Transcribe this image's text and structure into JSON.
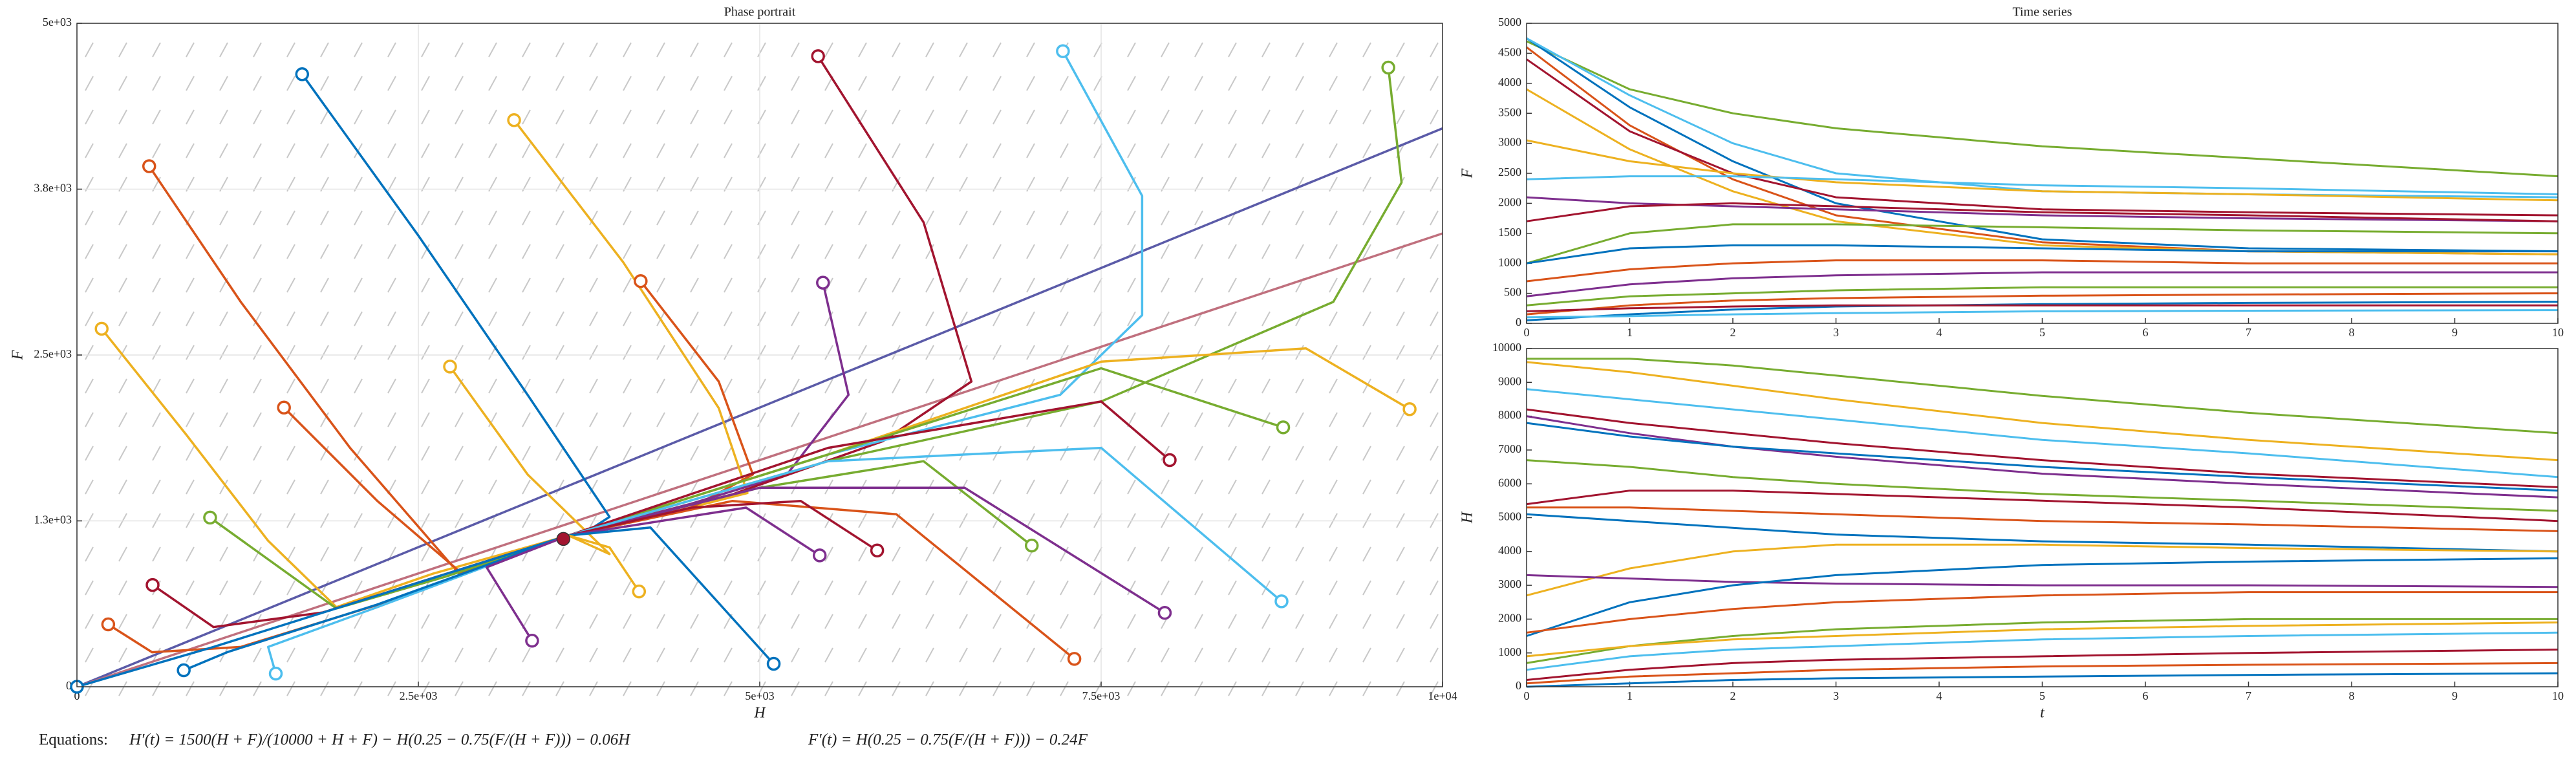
{
  "chart_data": [
    {
      "type": "line",
      "title": "Phase portrait",
      "xlabel": "H",
      "ylabel": "F",
      "grid": true,
      "field": true,
      "xlim": [
        0,
        10000
      ],
      "ylim": [
        0,
        5000
      ],
      "xticks": [
        0,
        {
          "value": 2500,
          "label": "2.5e+03"
        },
        {
          "value": 5000,
          "label": "5e+03"
        },
        {
          "value": 7500,
          "label": "7.5e+03"
        },
        {
          "value": 10000,
          "label": "1e+04"
        }
      ],
      "yticks": [
        0,
        {
          "value": 1250,
          "label": "1.3e+03"
        },
        {
          "value": 2500,
          "label": "2.5e+03"
        },
        {
          "value": 3750,
          "label": "3.8e+03"
        },
        {
          "value": 5000,
          "label": "5e+03"
        }
      ],
      "equilibrium": {
        "x": 3562,
        "y": 1114,
        "color": "#a2142f"
      },
      "series": [
        {
          "color": "#5b5ba8",
          "x": [
            0,
            10000
          ],
          "values": [
            0,
            4208
          ]
        },
        {
          "color": "#c0707e",
          "x": [
            0,
            10000
          ],
          "values": [
            0,
            3416
          ]
        },
        {
          "color": "#0072bd",
          "start_marker": true,
          "x": [
            1649,
            2500,
            3300,
            3900,
            3750,
            3600
          ],
          "values": [
            4616,
            3400,
            2200,
            1280,
            1180,
            1140
          ]
        },
        {
          "color": "#d95319",
          "start_marker": true,
          "x": [
            529,
            1200,
            2000,
            2800,
            3300,
            3600
          ],
          "values": [
            3923,
            2900,
            1800,
            850,
            1050,
            1140
          ]
        },
        {
          "color": "#edb120",
          "start_marker": true,
          "x": [
            181,
            800,
            1400,
            1900,
            2600,
            3600
          ],
          "values": [
            2698,
            1900,
            1100,
            600,
            850,
            1140
          ]
        },
        {
          "color": "#d95319",
          "start_marker": true,
          "x": [
            1516,
            2200,
            2800,
            3600
          ],
          "values": [
            2104,
            1400,
            870,
            1140
          ]
        },
        {
          "color": "#77ac30",
          "start_marker": true,
          "x": [
            975,
            1900,
            2700,
            3600
          ],
          "values": [
            1275,
            590,
            830,
            1140
          ]
        },
        {
          "color": "#a2142f",
          "start_marker": true,
          "x": [
            554,
            1000,
            1800,
            3600
          ],
          "values": [
            767,
            450,
            560,
            1140
          ]
        },
        {
          "color": "#d95319",
          "start_marker": true,
          "x": [
            229,
            550,
            1200,
            2400,
            3600
          ],
          "values": [
            470,
            260,
            300,
            680,
            1140
          ]
        },
        {
          "color": "#4dbeee",
          "start_marker": true,
          "x": [
            1456,
            1400,
            2200,
            3600
          ],
          "values": [
            99,
            300,
            600,
            1140
          ]
        },
        {
          "color": "#0072bd",
          "start_marker": true,
          "x": [
            782,
            1100,
            2200,
            3600
          ],
          "values": [
            124,
            260,
            620,
            1140
          ]
        },
        {
          "color": "#0072bd",
          "start_marker": true,
          "x": [
            0,
            1000,
            3600
          ],
          "values": [
            0,
            300,
            1140
          ]
        },
        {
          "color": "#edb120",
          "start_marker": true,
          "x": [
            3201,
            4000,
            4700,
            4910,
            4300,
            3600
          ],
          "values": [
            4270,
            3200,
            2100,
            1460,
            1300,
            1140
          ]
        },
        {
          "color": "#d95319",
          "start_marker": true,
          "x": [
            4128,
            4700,
            4950,
            4500,
            3600
          ],
          "values": [
            3057,
            2300,
            1600,
            1350,
            1140
          ]
        },
        {
          "color": "#edb120",
          "start_marker": true,
          "x": [
            2732,
            3300,
            3900,
            3600
          ],
          "values": [
            2413,
            1600,
            1000,
            1140
          ]
        },
        {
          "color": "#7e2f8e",
          "start_marker": true,
          "x": [
            5463,
            5650,
            5200,
            4500,
            3600
          ],
          "values": [
            3045,
            2200,
            1600,
            1380,
            1140
          ]
        },
        {
          "color": "#a2142f",
          "start_marker": true,
          "x": [
            5427,
            6200,
            6550,
            5900,
            4800,
            3600
          ],
          "values": [
            4752,
            3500,
            2300,
            1850,
            1450,
            1140
          ]
        },
        {
          "color": "#4dbeee",
          "start_marker": true,
          "x": [
            7220,
            7800,
            7800,
            7200,
            5500,
            3600
          ],
          "values": [
            4790,
            3700,
            2800,
            2200,
            1750,
            1140
          ]
        },
        {
          "color": "#77ac30",
          "start_marker": true,
          "x": [
            9603,
            9700,
            9200,
            7500,
            5500,
            3600
          ],
          "values": [
            4666,
            3800,
            2900,
            2150,
            1700,
            1140
          ]
        },
        {
          "color": "#edb120",
          "start_marker": true,
          "x": [
            9759,
            9000,
            7500,
            5500,
            3600
          ],
          "values": [
            2092,
            2550,
            2450,
            1750,
            1140
          ]
        },
        {
          "color": "#77ac30",
          "start_marker": true,
          "x": [
            8833,
            7500,
            5500,
            3600
          ],
          "values": [
            1955,
            2400,
            1750,
            1140
          ]
        },
        {
          "color": "#a2142f",
          "start_marker": true,
          "x": [
            8002,
            7500,
            5500,
            3600
          ],
          "values": [
            1708,
            2150,
            1800,
            1140
          ]
        },
        {
          "color": "#77ac30",
          "start_marker": true,
          "x": [
            6992,
            6200,
            5000,
            3600
          ],
          "values": [
            1064,
            1700,
            1500,
            1140
          ]
        },
        {
          "color": "#7e2f8e",
          "start_marker": true,
          "x": [
            7966,
            6500,
            5000,
            3600
          ],
          "values": [
            557,
            1500,
            1500,
            1140
          ]
        },
        {
          "color": "#d95319",
          "start_marker": true,
          "x": [
            7304,
            6000,
            4800,
            3600
          ],
          "values": [
            210,
            1300,
            1400,
            1140
          ]
        },
        {
          "color": "#4dbeee",
          "start_marker": true,
          "x": [
            8821,
            7500,
            5500,
            3600
          ],
          "values": [
            644,
            1800,
            1700,
            1140
          ]
        },
        {
          "color": "#a2142f",
          "start_marker": true,
          "x": [
            5860,
            5300,
            4500,
            3600
          ],
          "values": [
            1027,
            1400,
            1350,
            1140
          ]
        },
        {
          "color": "#7e2f8e",
          "start_marker": true,
          "x": [
            5439,
            4900,
            3600
          ],
          "values": [
            990,
            1350,
            1140
          ]
        },
        {
          "color": "#7e2f8e",
          "start_marker": true,
          "x": [
            3333,
            3000,
            3600
          ],
          "values": [
            347,
            900,
            1140
          ]
        },
        {
          "color": "#0072bd",
          "start_marker": true,
          "x": [
            5102,
            4200,
            3600
          ],
          "values": [
            173,
            1200,
            1140
          ]
        },
        {
          "color": "#edb120",
          "start_marker": true,
          "x": [
            4116,
            3900,
            3600
          ],
          "values": [
            718,
            1050,
            1140
          ]
        }
      ]
    },
    {
      "type": "line",
      "title": "Time series",
      "ylabel": "F",
      "grid": false,
      "xlim": [
        0,
        10
      ],
      "ylim": [
        0,
        5000
      ],
      "xticks": [
        0,
        1,
        2,
        3,
        4,
        5,
        6,
        7,
        8,
        9,
        10
      ],
      "yticks": [
        0,
        500,
        1000,
        1500,
        2000,
        2500,
        3000,
        3500,
        4000,
        4500,
        5000
      ],
      "x": [
        0,
        1,
        2,
        3,
        5,
        7,
        10
      ],
      "series": [
        {
          "color": "#77ac30",
          "values": [
            4700,
            3900,
            3500,
            3250,
            2950,
            2750,
            2450
          ]
        },
        {
          "color": "#0072bd",
          "values": [
            4750,
            3600,
            2700,
            2000,
            1400,
            1250,
            1200
          ]
        },
        {
          "color": "#d95319",
          "values": [
            4600,
            3300,
            2400,
            1800,
            1350,
            1200,
            1150
          ]
        },
        {
          "color": "#a2142f",
          "values": [
            4400,
            3200,
            2500,
            2100,
            1900,
            1850,
            1800
          ]
        },
        {
          "color": "#edb120",
          "values": [
            3900,
            2900,
            2200,
            1700,
            1300,
            1200,
            1150
          ]
        },
        {
          "color": "#4dbeee",
          "values": [
            4750,
            3800,
            3000,
            2500,
            2200,
            2150,
            2100
          ]
        },
        {
          "color": "#edb120",
          "values": [
            3050,
            2700,
            2500,
            2350,
            2200,
            2150,
            2050
          ]
        },
        {
          "color": "#7e2f8e",
          "values": [
            2100,
            2000,
            1950,
            1900,
            1800,
            1750,
            1700
          ]
        },
        {
          "color": "#4dbeee",
          "values": [
            2400,
            2450,
            2450,
            2400,
            2300,
            2250,
            2150
          ]
        },
        {
          "color": "#a2142f",
          "values": [
            1700,
            1950,
            2000,
            1950,
            1850,
            1800,
            1700
          ]
        },
        {
          "color": "#77ac30",
          "values": [
            1000,
            1500,
            1650,
            1650,
            1600,
            1550,
            1500
          ]
        },
        {
          "color": "#0072bd",
          "values": [
            1000,
            1250,
            1300,
            1300,
            1250,
            1200,
            1200
          ]
        },
        {
          "color": "#d95319",
          "values": [
            700,
            900,
            1000,
            1050,
            1050,
            1000,
            1000
          ]
        },
        {
          "color": "#7e2f8e",
          "values": [
            450,
            650,
            750,
            800,
            850,
            850,
            850
          ]
        },
        {
          "color": "#77ac30",
          "values": [
            300,
            450,
            500,
            550,
            600,
            600,
            600
          ]
        },
        {
          "color": "#d95319",
          "values": [
            150,
            300,
            380,
            420,
            460,
            480,
            500
          ]
        },
        {
          "color": "#0072bd",
          "values": [
            50,
            150,
            230,
            280,
            320,
            340,
            360
          ]
        },
        {
          "color": "#a2142f",
          "values": [
            200,
            250,
            280,
            300,
            300,
            300,
            300
          ]
        },
        {
          "color": "#4dbeee",
          "values": [
            100,
            120,
            150,
            170,
            200,
            210,
            220
          ]
        }
      ]
    },
    {
      "type": "line",
      "xlabel": "t",
      "ylabel": "H",
      "grid": false,
      "xlim": [
        0,
        10
      ],
      "ylim": [
        0,
        10000
      ],
      "xticks": [
        0,
        1,
        2,
        3,
        4,
        5,
        6,
        7,
        8,
        9,
        10
      ],
      "yticks": [
        0,
        1000,
        2000,
        3000,
        4000,
        5000,
        6000,
        7000,
        8000,
        9000,
        10000
      ],
      "x": [
        0,
        1,
        2,
        3,
        5,
        7,
        10
      ],
      "series": [
        {
          "color": "#77ac30",
          "values": [
            9700,
            9700,
            9500,
            9200,
            8600,
            8100,
            7500
          ]
        },
        {
          "color": "#edb120",
          "values": [
            9600,
            9300,
            8900,
            8500,
            7800,
            7300,
            6700
          ]
        },
        {
          "color": "#4dbeee",
          "values": [
            8800,
            8500,
            8200,
            7900,
            7300,
            6900,
            6200
          ]
        },
        {
          "color": "#a2142f",
          "values": [
            8200,
            7800,
            7500,
            7200,
            6700,
            6300,
            5900
          ]
        },
        {
          "color": "#7e2f8e",
          "values": [
            8000,
            7500,
            7100,
            6800,
            6300,
            6000,
            5600
          ]
        },
        {
          "color": "#0072bd",
          "values": [
            7800,
            7400,
            7100,
            6900,
            6500,
            6200,
            5800
          ]
        },
        {
          "color": "#77ac30",
          "values": [
            6700,
            6500,
            6200,
            6000,
            5700,
            5500,
            5200
          ]
        },
        {
          "color": "#a2142f",
          "values": [
            5400,
            5800,
            5800,
            5700,
            5500,
            5300,
            4900
          ]
        },
        {
          "color": "#d95319",
          "values": [
            5300,
            5300,
            5200,
            5100,
            4900,
            4800,
            4600
          ]
        },
        {
          "color": "#0072bd",
          "values": [
            5100,
            4900,
            4700,
            4500,
            4300,
            4200,
            4000
          ]
        },
        {
          "color": "#edb120",
          "values": [
            2700,
            3500,
            4000,
            4200,
            4200,
            4100,
            4000
          ]
        },
        {
          "color": "#7e2f8e",
          "values": [
            3300,
            3200,
            3100,
            3050,
            3000,
            3000,
            2950
          ]
        },
        {
          "color": "#0072bd",
          "values": [
            1500,
            2500,
            3000,
            3300,
            3600,
            3700,
            3800
          ]
        },
        {
          "color": "#d95319",
          "values": [
            1600,
            2000,
            2300,
            2500,
            2700,
            2800,
            2800
          ]
        },
        {
          "color": "#77ac30",
          "values": [
            700,
            1200,
            1500,
            1700,
            1900,
            2000,
            2000
          ]
        },
        {
          "color": "#edb120",
          "values": [
            900,
            1200,
            1400,
            1500,
            1700,
            1800,
            1900
          ]
        },
        {
          "color": "#4dbeee",
          "values": [
            500,
            900,
            1100,
            1200,
            1400,
            1500,
            1600
          ]
        },
        {
          "color": "#a2142f",
          "values": [
            200,
            500,
            700,
            800,
            900,
            1000,
            1100
          ]
        },
        {
          "color": "#d95319",
          "values": [
            100,
            300,
            400,
            500,
            600,
            650,
            700
          ]
        },
        {
          "color": "#0072bd",
          "values": [
            0,
            100,
            200,
            250,
            300,
            350,
            400
          ]
        }
      ]
    }
  ],
  "equations": {
    "label": "Equations:",
    "h": "H′(t) = 1500(H + F)/(10000 + H + F) − H(0.25 − 0.75(F/(H + F))) − 0.06H",
    "f": "F′(t) = H(0.25 − 0.75(F/(H + F))) − 0.24F"
  }
}
